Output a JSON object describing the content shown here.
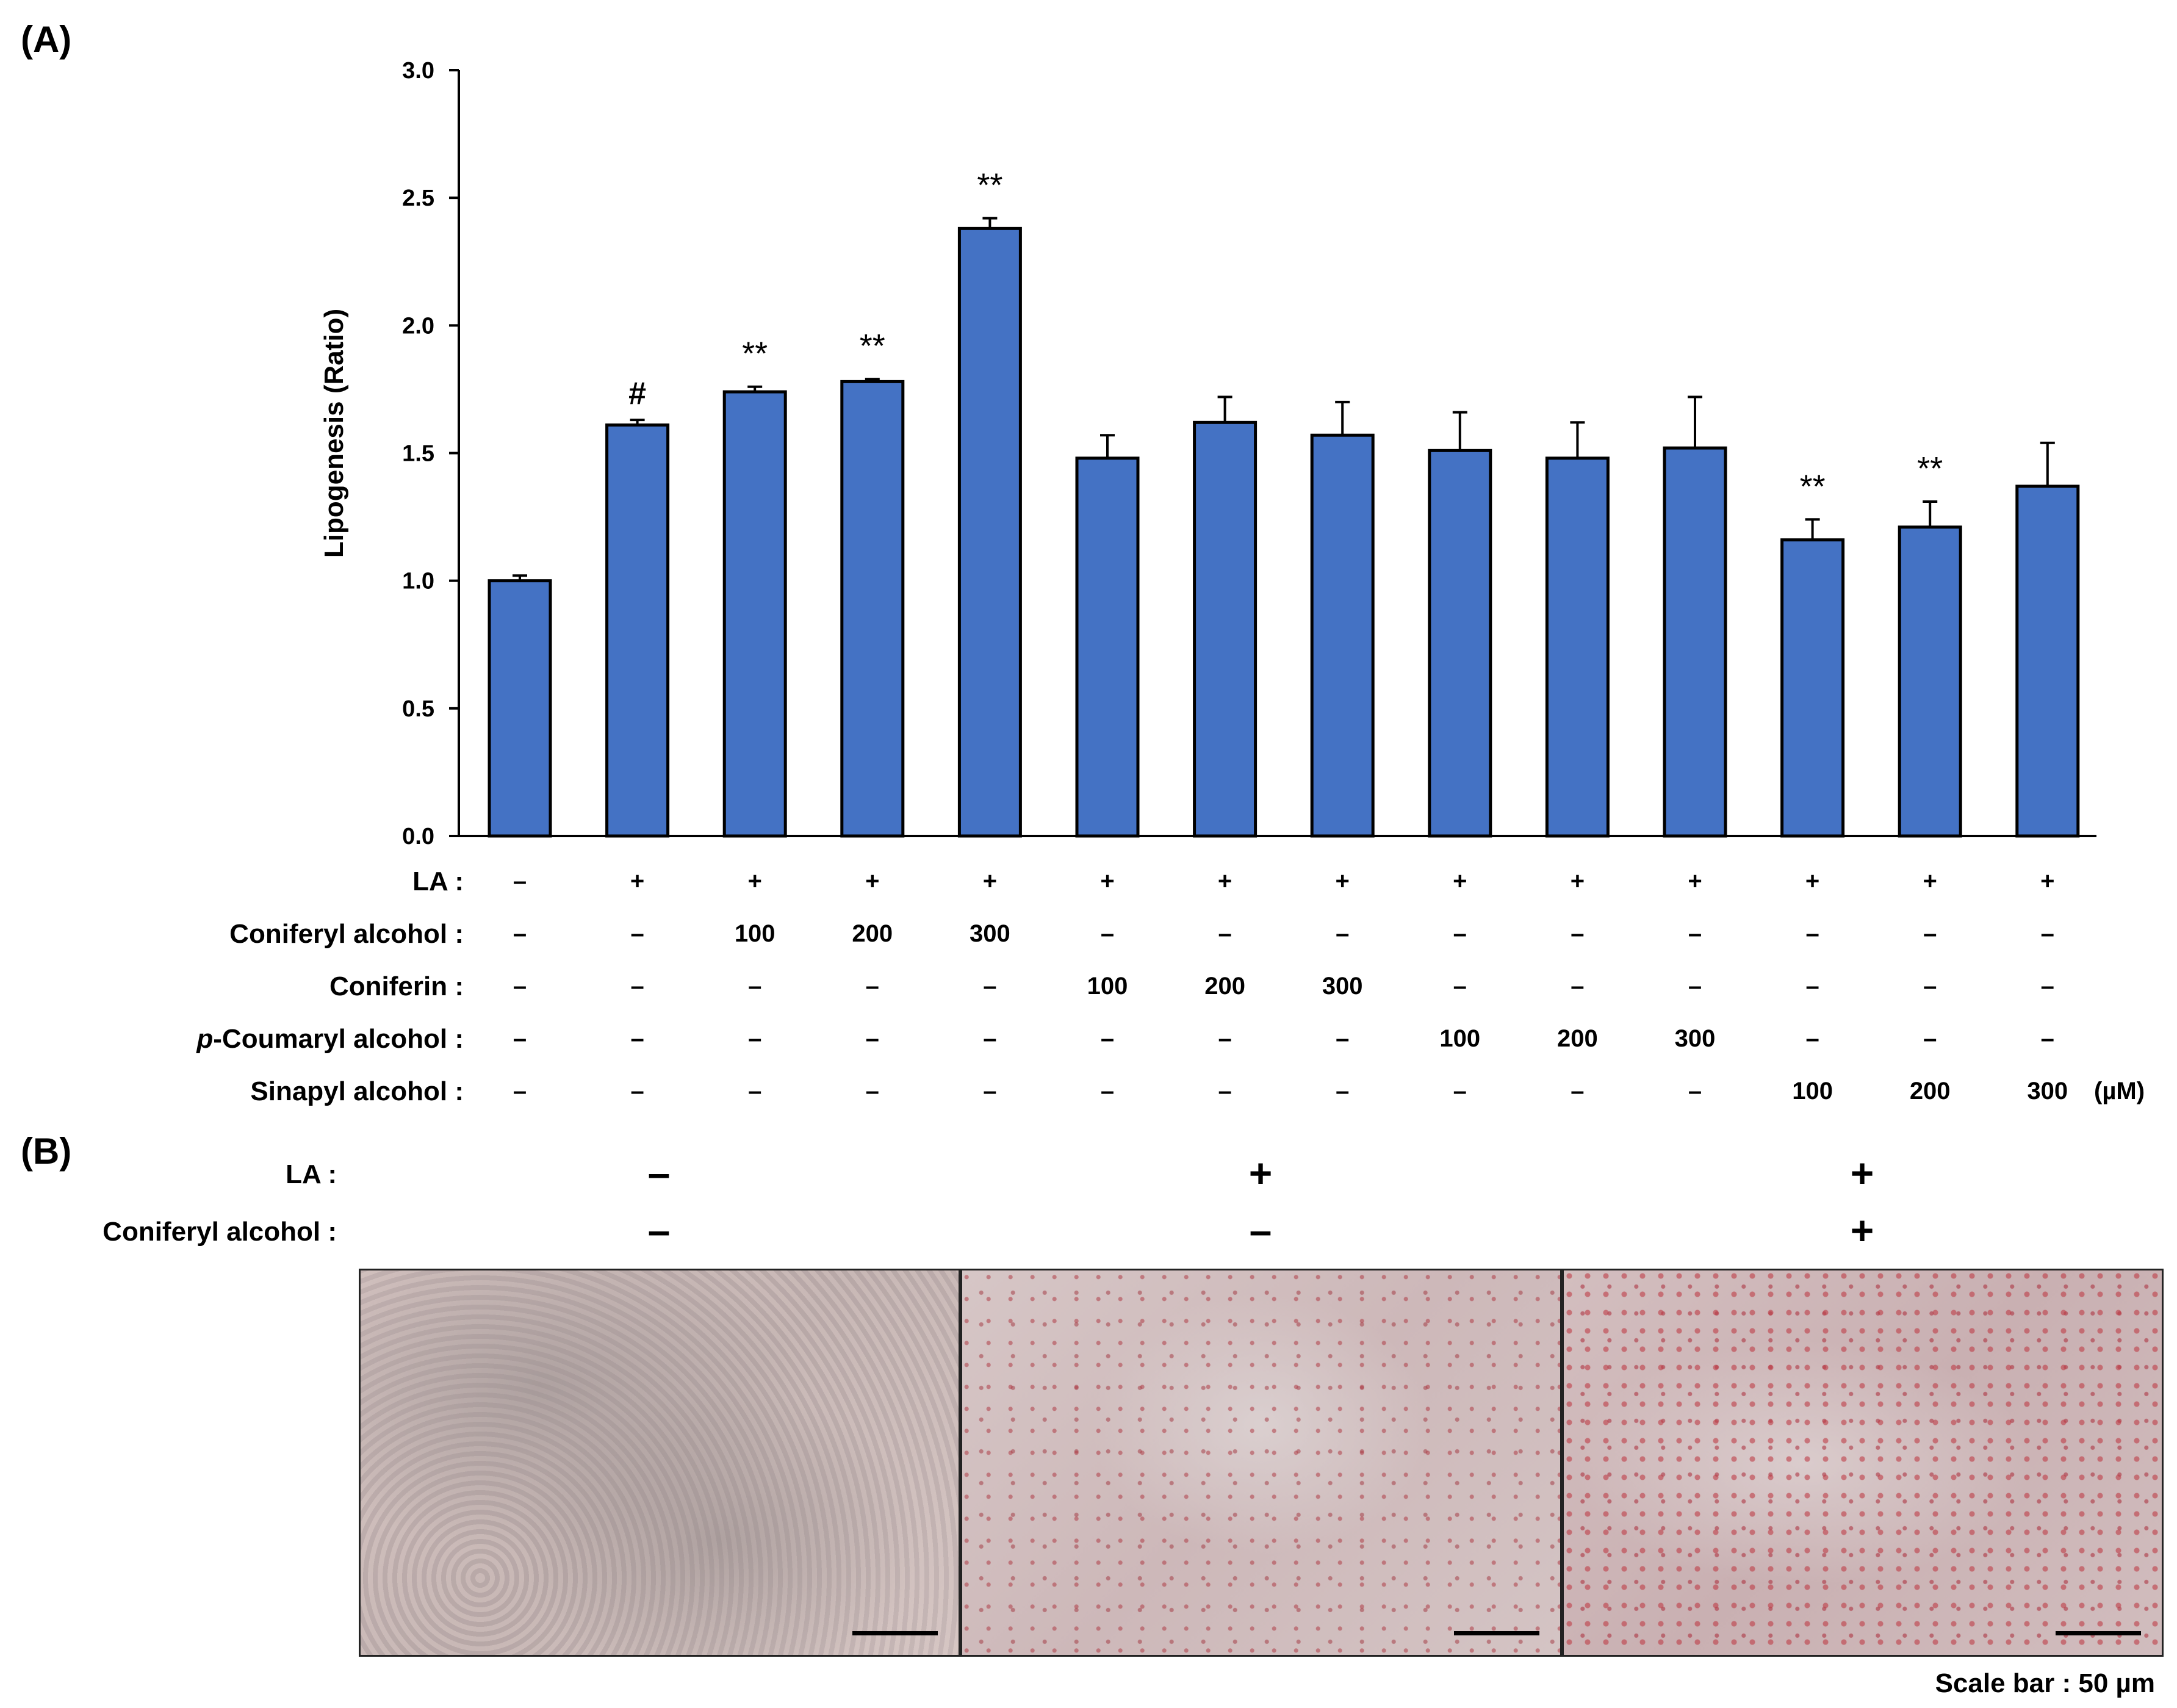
{
  "panel_a_label": "(A)",
  "panel_b_label": "(B)",
  "chart_data": {
    "type": "bar",
    "ylabel": "Lipogenesis (Ratio)",
    "ylim": [
      0,
      3.0
    ],
    "yticks": [
      "0.0",
      "0.5",
      "1.0",
      "1.5",
      "2.0",
      "2.5",
      "3.0"
    ],
    "bar_color": "#4472C4",
    "values": [
      1.0,
      1.61,
      1.74,
      1.78,
      2.38,
      1.48,
      1.62,
      1.57,
      1.51,
      1.48,
      1.52,
      1.16,
      1.21,
      1.37
    ],
    "errors": [
      0.02,
      0.02,
      0.02,
      0.01,
      0.04,
      0.09,
      0.1,
      0.13,
      0.15,
      0.14,
      0.2,
      0.08,
      0.1,
      0.17
    ],
    "annotations": [
      "",
      "#",
      "**",
      "**",
      "**",
      "",
      "",
      "",
      "",
      "",
      "",
      "**",
      "**",
      ""
    ]
  },
  "treatment_table": {
    "rows": [
      {
        "label": "LA :",
        "values": [
          "–",
          "+",
          "+",
          "+",
          "+",
          "+",
          "+",
          "+",
          "+",
          "+",
          "+",
          "+",
          "+",
          "+"
        ]
      },
      {
        "label": "Coniferyl alcohol :",
        "values": [
          "–",
          "–",
          "100",
          "200",
          "300",
          "–",
          "–",
          "–",
          "–",
          "–",
          "–",
          "–",
          "–",
          "–"
        ]
      },
      {
        "label": "Coniferin :",
        "values": [
          "–",
          "–",
          "–",
          "–",
          "–",
          "100",
          "200",
          "300",
          "–",
          "–",
          "–",
          "–",
          "–",
          "–"
        ]
      },
      {
        "label": "p-Coumaryl alcohol :",
        "values": [
          "–",
          "–",
          "–",
          "–",
          "–",
          "–",
          "–",
          "–",
          "100",
          "200",
          "300",
          "–",
          "–",
          "–"
        ]
      },
      {
        "label": "Sinapyl alcohol :",
        "values": [
          "–",
          "–",
          "–",
          "–",
          "–",
          "–",
          "–",
          "–",
          "–",
          "–",
          "–",
          "100",
          "200",
          "300"
        ]
      }
    ],
    "unit": "(µM)"
  },
  "panel_b": {
    "rows": [
      {
        "label": "LA :",
        "values": [
          "–",
          "+",
          "+"
        ]
      },
      {
        "label": "Coniferyl alcohol :",
        "values": [
          "–",
          "–",
          "+"
        ]
      }
    ],
    "scale_text": "Scale bar : 50 µm"
  }
}
